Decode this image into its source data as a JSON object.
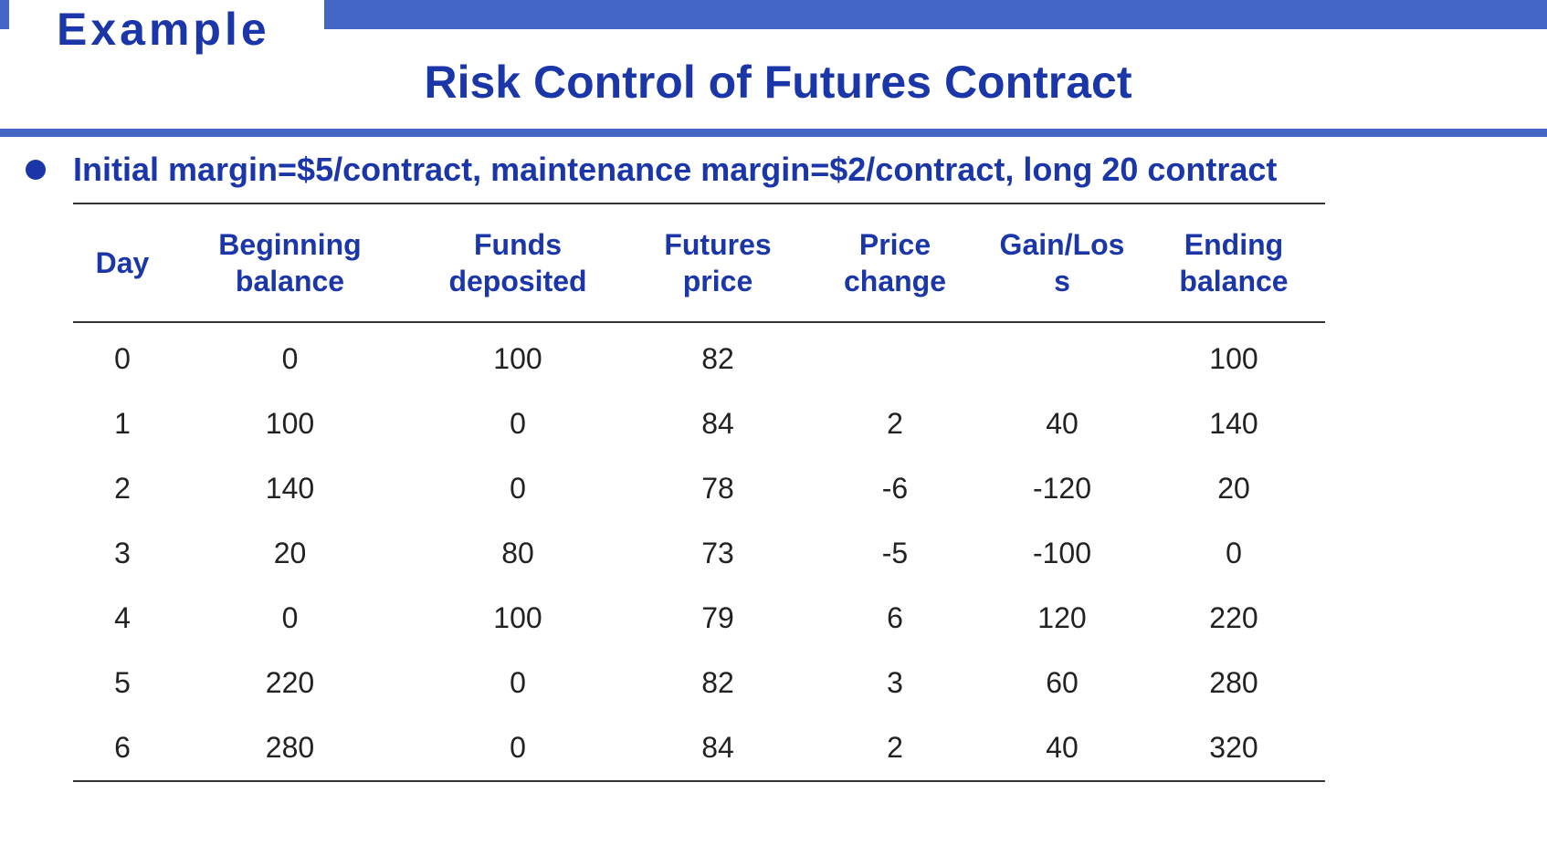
{
  "header": {
    "label": "Example",
    "title": "Risk Control of Futures Contract"
  },
  "bullet": {
    "text": "Initial margin=$5/contract, maintenance margin=$2/contract, long 20 contract"
  },
  "table": {
    "columns": [
      "Day",
      "Beginning\nbalance",
      "Funds\ndeposited",
      "Futures\nprice",
      "Price\nchange",
      "Gain/Los\ns",
      "Ending\nbalance"
    ],
    "rows": [
      [
        "0",
        "0",
        "100",
        "82",
        "",
        "",
        "100"
      ],
      [
        "1",
        "100",
        "0",
        "84",
        "2",
        "40",
        "140"
      ],
      [
        "2",
        "140",
        "0",
        "78",
        "-6",
        "-120",
        "20"
      ],
      [
        "3",
        "20",
        "80",
        "73",
        "-5",
        "-100",
        "0"
      ],
      [
        "4",
        "0",
        "100",
        "79",
        "6",
        "120",
        "220"
      ],
      [
        "5",
        "220",
        "0",
        "82",
        "3",
        "60",
        "280"
      ],
      [
        "6",
        "280",
        "0",
        "84",
        "2",
        "40",
        "320"
      ]
    ]
  },
  "colors": {
    "accent_bar": "#4466c4",
    "title_text": "#1b36a8",
    "body_text": "#222222"
  }
}
